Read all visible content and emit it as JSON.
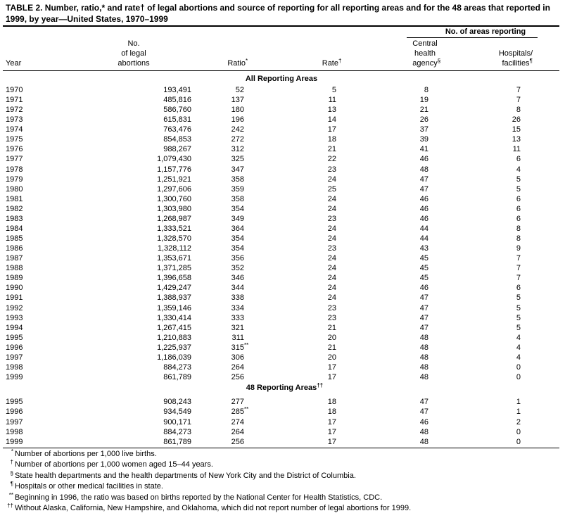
{
  "title": "TABLE 2. Number, ratio,* and rate† of legal abortions and source of reporting for all reporting areas and for the 48 areas that reported in 1999, by year—United States, 1970–1999",
  "column_group": "No. of areas reporting",
  "columns": [
    {
      "lines": [
        "Year"
      ]
    },
    {
      "lines": [
        "No.",
        "of legal",
        "abortions"
      ]
    },
    {
      "lines": [
        "Ratio"
      ],
      "note": "*"
    },
    {
      "lines": [
        "Rate"
      ],
      "note": "†"
    },
    {
      "lines": [
        "Central",
        "health",
        "agency"
      ],
      "note": "§"
    },
    {
      "lines": [
        "Hospitals/",
        "facilities"
      ],
      "note": "¶"
    }
  ],
  "sections": [
    {
      "heading": "All Reporting Areas",
      "rows": [
        [
          "1970",
          "193,491",
          "52",
          "5",
          "8",
          "7"
        ],
        [
          "1971",
          "485,816",
          "137",
          "11",
          "19",
          "7"
        ],
        [
          "1972",
          "586,760",
          "180",
          "13",
          "21",
          "8"
        ],
        [
          "1973",
          "615,831",
          "196",
          "14",
          "26",
          "26"
        ],
        [
          "1974",
          "763,476",
          "242",
          "17",
          "37",
          "15"
        ],
        [
          "1975",
          "854,853",
          "272",
          "18",
          "39",
          "13"
        ],
        [
          "1976",
          "988,267",
          "312",
          "21",
          "41",
          "11"
        ],
        [
          "1977",
          "1,079,430",
          "325",
          "22",
          "46",
          "6"
        ],
        [
          "1978",
          "1,157,776",
          "347",
          "23",
          "48",
          "4"
        ],
        [
          "1979",
          "1,251,921",
          "358",
          "24",
          "47",
          "5"
        ],
        [
          "1980",
          "1,297,606",
          "359",
          "25",
          "47",
          "5"
        ],
        [
          "1981",
          "1,300,760",
          "358",
          "24",
          "46",
          "6"
        ],
        [
          "1982",
          "1,303,980",
          "354",
          "24",
          "46",
          "6"
        ],
        [
          "1983",
          "1,268,987",
          "349",
          "23",
          "46",
          "6"
        ],
        [
          "1984",
          "1,333,521",
          "364",
          "24",
          "44",
          "8"
        ],
        [
          "1985",
          "1,328,570",
          "354",
          "24",
          "44",
          "8"
        ],
        [
          "1986",
          "1,328,112",
          "354",
          "23",
          "43",
          "9"
        ],
        [
          "1987",
          "1,353,671",
          "356",
          "24",
          "45",
          "7"
        ],
        [
          "1988",
          "1,371,285",
          "352",
          "24",
          "45",
          "7"
        ],
        [
          "1989",
          "1,396,658",
          "346",
          "24",
          "45",
          "7"
        ],
        [
          "1990",
          "1,429,247",
          "344",
          "24",
          "46",
          "6"
        ],
        [
          "1991",
          "1,388,937",
          "338",
          "24",
          "47",
          "5"
        ],
        [
          "1992",
          "1,359,146",
          "334",
          "23",
          "47",
          "5"
        ],
        [
          "1993",
          "1,330,414",
          "333",
          "23",
          "47",
          "5"
        ],
        [
          "1994",
          "1,267,415",
          "321",
          "21",
          "47",
          "5"
        ],
        [
          "1995",
          "1,210,883",
          "311",
          "20",
          "48",
          "4"
        ],
        [
          "1996",
          "1,225,937",
          {
            "text": "315",
            "note": "**"
          },
          "21",
          "48",
          "4"
        ],
        [
          "1997",
          "1,186,039",
          "306",
          "20",
          "48",
          "4"
        ],
        [
          "1998",
          "884,273",
          "264",
          "17",
          "48",
          "0"
        ],
        [
          "1999",
          "861,789",
          "256",
          "17",
          "48",
          "0"
        ]
      ]
    },
    {
      "heading": "48 Reporting Areas",
      "note": "††",
      "rows": [
        [
          "1995",
          "908,243",
          "277",
          "18",
          "47",
          "1"
        ],
        [
          "1996",
          "934,549",
          {
            "text": "285",
            "note": "**"
          },
          "18",
          "47",
          "1"
        ],
        [
          "1997",
          "900,171",
          "274",
          "17",
          "46",
          "2"
        ],
        [
          "1998",
          "884,273",
          "264",
          "17",
          "48",
          "0"
        ],
        [
          "1999",
          "861,789",
          "256",
          "17",
          "48",
          "0"
        ]
      ]
    }
  ],
  "footnotes": [
    {
      "mark": "*",
      "text": "Number of abortions per 1,000 live births."
    },
    {
      "mark": "†",
      "text": "Number of abortions per 1,000 women aged 15–44 years."
    },
    {
      "mark": "§",
      "text": "State health departments and the health departments of New York City and the District of Columbia."
    },
    {
      "mark": "¶",
      "text": "Hospitals or other medical facilities in state."
    },
    {
      "mark": "**",
      "text": "Beginning in 1996, the ratio was based on births reported by the National Center for Health Statistics, CDC."
    },
    {
      "mark": "††",
      "text": "Without Alaska, California, New Hampshire, and Oklahoma, which did not report number of legal abortions for 1999."
    }
  ]
}
